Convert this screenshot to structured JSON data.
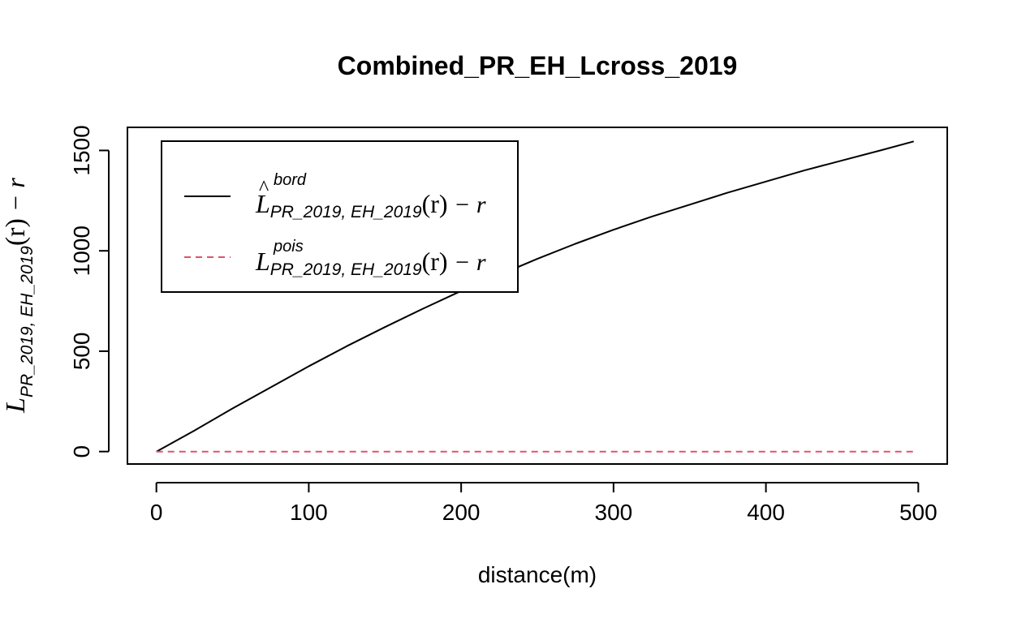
{
  "chart_data": {
    "type": "line",
    "title": "Combined_PR_EH_Lcross_2019",
    "xlabel": "distance(m)",
    "ylabel": {
      "main": "L",
      "sub": "PR_2019, EH_2019",
      "arg": "(r)",
      "tail": " − r"
    },
    "xlim": [
      -19,
      519
    ],
    "ylim": [
      -62,
      1615
    ],
    "xticks": [
      0,
      100,
      200,
      300,
      400,
      500
    ],
    "yticks": [
      0,
      500,
      1000,
      1500
    ],
    "xtick_labels": [
      "0",
      "100",
      "200",
      "300",
      "400",
      "500"
    ],
    "ytick_labels": [
      "0",
      "500",
      "1000",
      "1500"
    ],
    "grid": false,
    "legend_position": "top-left",
    "series": [
      {
        "legend": {
          "main": "L",
          "hat": "^",
          "sup": "bord",
          "sub": "PR_2019, EH_2019",
          "arg": "(r)",
          "tail": " − r"
        },
        "color": "#000000",
        "dash": "solid",
        "x": [
          0,
          25,
          50,
          75,
          100,
          125,
          150,
          175,
          200,
          225,
          250,
          275,
          300,
          325,
          350,
          375,
          400,
          425,
          450,
          475,
          497
        ],
        "y": [
          0,
          105,
          215,
          320,
          425,
          525,
          620,
          712,
          800,
          880,
          960,
          1035,
          1105,
          1170,
          1230,
          1290,
          1345,
          1400,
          1450,
          1500,
          1545
        ]
      },
      {
        "legend": {
          "main": "L",
          "hat": "",
          "sup": "pois",
          "sub": "PR_2019, EH_2019",
          "arg": "(r)",
          "tail": " − r"
        },
        "color": "#DF536B",
        "dash": "dashed",
        "x": [
          0,
          497
        ],
        "y": [
          0,
          0
        ]
      }
    ]
  }
}
